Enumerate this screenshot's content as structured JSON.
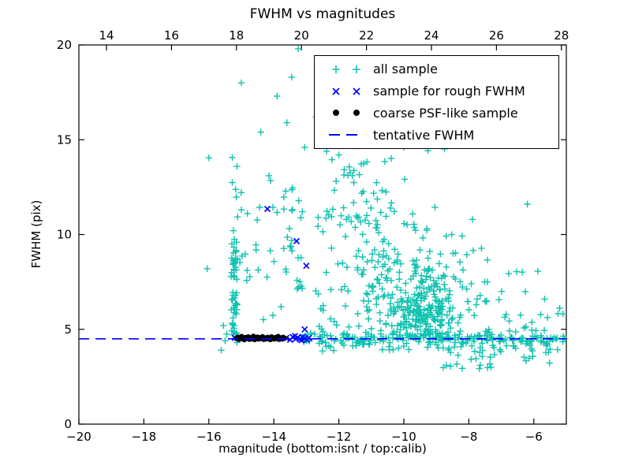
{
  "axes": {
    "x_bottom": {
      "label": "magnitude (bottom:isnt / top:calib)",
      "min": -20,
      "max": -5,
      "ticks": [
        {
          "v": -20,
          "label": "−20"
        },
        {
          "v": -18,
          "label": "−18"
        },
        {
          "v": -16,
          "label": "−16"
        },
        {
          "v": -14,
          "label": "−14"
        },
        {
          "v": -12,
          "label": "−12"
        },
        {
          "v": -10,
          "label": "−10"
        },
        {
          "v": -8,
          "label": "−8"
        },
        {
          "v": -6,
          "label": "−6"
        }
      ]
    },
    "x_top": {
      "min": 13.15,
      "max": 28.15,
      "ticks": [
        {
          "v": 14,
          "label": "14"
        },
        {
          "v": 16,
          "label": "16"
        },
        {
          "v": 18,
          "label": "18"
        },
        {
          "v": 20,
          "label": "20"
        },
        {
          "v": 22,
          "label": "22"
        },
        {
          "v": 24,
          "label": "24"
        },
        {
          "v": 26,
          "label": "26"
        },
        {
          "v": 28,
          "label": "28"
        }
      ]
    },
    "y": {
      "label": "FWHM (pix)",
      "min": 0,
      "max": 20,
      "ticks": [
        {
          "v": 0,
          "label": "0"
        },
        {
          "v": 5,
          "label": "5"
        },
        {
          "v": 10,
          "label": "10"
        },
        {
          "v": 15,
          "label": "15"
        },
        {
          "v": 20,
          "label": "20"
        }
      ]
    }
  },
  "chart_data": {
    "type": "scatter",
    "title": "FWHM vs magnitudes",
    "xlabel": "magnitude (bottom:isnt / top:calib)",
    "ylabel": "FWHM (pix)",
    "xlim": [
      -20,
      -5
    ],
    "ylim": [
      0,
      20
    ],
    "x_top_lim": [
      13.15,
      28.15
    ],
    "grid": false,
    "legend_position": "upper right",
    "tentative_fwhm": 4.5,
    "series": [
      {
        "name": "all sample",
        "marker": "plus",
        "color": "#0fc2b0",
        "points": [
          [
            -15.0,
            18.0
          ],
          [
            -16.0,
            14.05
          ],
          [
            -6.2,
            11.6
          ],
          [
            -13.25,
            19.8
          ],
          [
            -12.1,
            18.6
          ],
          [
            -11.0,
            18.85
          ],
          [
            -13.9,
            17.3
          ],
          [
            -12.7,
            16.2
          ],
          [
            -10.4,
            18.4
          ],
          [
            -9.9,
            17.2
          ],
          [
            -13.05,
            14.6
          ],
          [
            -14.15,
            13.1
          ],
          [
            -15.0,
            11.3
          ],
          [
            -14.55,
            9.45
          ],
          [
            -16.05,
            8.2
          ],
          [
            -15.55,
            5.2
          ],
          [
            -15.5,
            4.4
          ],
          [
            -15.62,
            3.9
          ],
          [
            -15.45,
            4.75
          ],
          [
            -14.4,
            15.4
          ],
          [
            -13.6,
            15.9
          ],
          [
            -12.35,
            17.5
          ],
          [
            -11.55,
            19.1
          ],
          [
            -10.15,
            19.0
          ],
          [
            -9.55,
            18.2
          ],
          [
            -8.85,
            16.9
          ],
          [
            -13.45,
            18.3
          ],
          [
            -12.0,
            14.2
          ],
          [
            -10.8,
            16.0
          ],
          [
            -9.2,
            15.5
          ]
        ],
        "density_clusters": [
          {
            "dist": "uniform",
            "x": [
              -15.32,
              -15.12
            ],
            "y": [
              4.3,
              9.8
            ],
            "n": 55,
            "seed": 1
          },
          {
            "dist": "uniform",
            "x": [
              -15.3,
              -15.1
            ],
            "y": [
              9.8,
              14.2
            ],
            "n": 7,
            "seed": 2
          },
          {
            "dist": "band",
            "x": [
              -13.15,
              -5.05
            ],
            "cy": 4.52,
            "sy": 0.18,
            "n": 200,
            "seed": 3
          },
          {
            "dist": "uniform",
            "x": [
              -8.3,
              -5.1
            ],
            "y": [
              3.2,
              4.25
            ],
            "n": 28,
            "seed": 4
          },
          {
            "dist": "gauss",
            "cx": -9.25,
            "cy": 6.1,
            "sx": 0.5,
            "sy": 1.0,
            "n": 200,
            "clip_y": [
              4.55,
              12.5
            ],
            "seed": 5
          },
          {
            "dist": "gauss",
            "cx": -9.6,
            "cy": 7.7,
            "sx": 1.2,
            "sy": 1.8,
            "n": 110,
            "clip_x": [
              -12.6,
              -5.2
            ],
            "clip_y": [
              4.6,
              13.2
            ],
            "seed": 6
          },
          {
            "dist": "gauss",
            "cx": -11.3,
            "cy": 11.2,
            "sx": 0.7,
            "sy": 1.6,
            "n": 70,
            "clip_x": [
              -12.9,
              -9.9
            ],
            "clip_y": [
              8.0,
              15.2
            ],
            "seed": 7
          },
          {
            "dist": "uniform",
            "x": [
              -13.7,
              -13.1
            ],
            "y": [
              6.5,
              12.5
            ],
            "n": 22,
            "seed": 8
          },
          {
            "dist": "uniform",
            "x": [
              -12.6,
              -8.2
            ],
            "y": [
              13.5,
              19.3
            ],
            "n": 38,
            "seed": 9
          },
          {
            "dist": "uniform",
            "x": [
              -15.05,
              -13.2
            ],
            "y": [
              5.0,
              13.0
            ],
            "n": 26,
            "seed": 10
          },
          {
            "dist": "uniform",
            "x": [
              -7.6,
              -5.1
            ],
            "y": [
              4.9,
              8.3
            ],
            "n": 26,
            "seed": 11
          },
          {
            "dist": "uniform",
            "x": [
              -12.9,
              -8.4
            ],
            "y": [
              3.85,
              4.35
            ],
            "n": 22,
            "seed": 12
          },
          {
            "dist": "uniform",
            "x": [
              -12.9,
              -11.3
            ],
            "y": [
              5.0,
              8.5
            ],
            "n": 16,
            "seed": 13
          },
          {
            "dist": "uniform",
            "x": [
              -11.3,
              -9.9
            ],
            "y": [
              5.0,
              9.0
            ],
            "n": 42,
            "seed": 14
          },
          {
            "dist": "uniform",
            "x": [
              -9.0,
              -6.6
            ],
            "y": [
              2.8,
              4.2
            ],
            "n": 18,
            "seed": 15
          }
        ]
      },
      {
        "name": "sample for rough FWHM",
        "marker": "x",
        "color": "#0000ff",
        "points": [
          [
            -14.2,
            11.35
          ],
          [
            -13.3,
            9.65
          ],
          [
            -13.0,
            8.35
          ],
          [
            -13.05,
            5.0
          ],
          [
            -15.2,
            4.55
          ],
          [
            -13.8,
            4.5
          ],
          [
            -13.62,
            4.55
          ],
          [
            -13.5,
            4.45
          ],
          [
            -13.42,
            4.6
          ],
          [
            -13.33,
            4.5
          ],
          [
            -13.27,
            4.57
          ],
          [
            -13.2,
            4.48
          ],
          [
            -13.12,
            4.6
          ],
          [
            -13.05,
            4.52
          ],
          [
            -12.98,
            4.45
          ],
          [
            -12.92,
            4.55
          ],
          [
            -13.15,
            4.42
          ],
          [
            -13.35,
            4.65
          ]
        ]
      },
      {
        "name": "coarse PSF-like sample",
        "marker": "dot",
        "color": "#000000",
        "points": [
          [
            -15.15,
            4.52
          ],
          [
            -15.11,
            4.58
          ],
          [
            -15.07,
            4.47
          ],
          [
            -15.03,
            4.55
          ],
          [
            -14.99,
            4.62
          ],
          [
            -14.95,
            4.5
          ],
          [
            -14.91,
            4.45
          ],
          [
            -14.87,
            4.57
          ],
          [
            -14.83,
            4.53
          ],
          [
            -14.79,
            4.6
          ],
          [
            -14.75,
            4.48
          ],
          [
            -14.71,
            4.55
          ],
          [
            -14.67,
            4.5
          ],
          [
            -14.63,
            4.63
          ],
          [
            -14.59,
            4.46
          ],
          [
            -14.55,
            4.54
          ],
          [
            -14.51,
            4.59
          ],
          [
            -14.47,
            4.49
          ],
          [
            -14.43,
            4.56
          ],
          [
            -14.39,
            4.52
          ],
          [
            -14.35,
            4.61
          ],
          [
            -14.31,
            4.47
          ],
          [
            -14.27,
            4.55
          ],
          [
            -14.23,
            4.5
          ],
          [
            -14.19,
            4.58
          ],
          [
            -14.15,
            4.53
          ],
          [
            -14.11,
            4.46
          ],
          [
            -14.07,
            4.6
          ],
          [
            -14.03,
            4.54
          ],
          [
            -13.99,
            4.49
          ],
          [
            -13.95,
            4.57
          ],
          [
            -13.91,
            4.52
          ],
          [
            -13.87,
            4.62
          ],
          [
            -13.83,
            4.48
          ],
          [
            -13.79,
            4.55
          ],
          [
            -13.75,
            4.51
          ],
          [
            -13.71,
            4.58
          ],
          [
            -13.67,
            4.53
          ]
        ]
      },
      {
        "name": "tentative FWHM",
        "type": "hline",
        "linestyle": "dashed",
        "color": "#0000ff",
        "y": 4.5
      }
    ],
    "legend": {
      "entries": [
        {
          "label": "all sample",
          "marker": "plus"
        },
        {
          "label": "sample for rough FWHM",
          "marker": "x"
        },
        {
          "label": "coarse PSF-like sample",
          "marker": "dot"
        },
        {
          "label": "tentative FWHM",
          "marker": "dashed-line"
        }
      ]
    },
    "colors": {
      "all_sample": "#0fc2b0",
      "rough_fwhm": "#0000ff",
      "psf_sample": "#000000",
      "tentative_line": "#0000ff",
      "frame": "#000000"
    }
  }
}
